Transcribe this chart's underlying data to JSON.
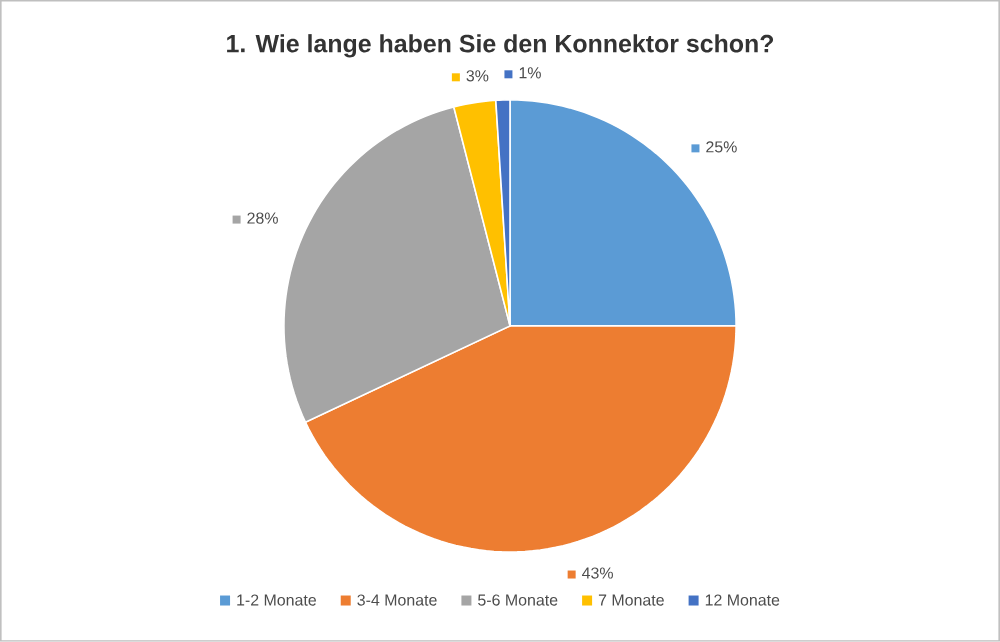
{
  "chart_data": {
    "type": "pie",
    "title": "1. Wie lange haben Sie den Konnektor schon?",
    "categories": [
      "1-2 Monate",
      "3-4 Monate",
      "5-6 Monate",
      "7 Monate",
      "12 Monate"
    ],
    "values": [
      25,
      43,
      28,
      3,
      1
    ],
    "value_labels": [
      "25%",
      "43%",
      "28%",
      "3%",
      "1%"
    ],
    "colors": [
      "#5b9bd5",
      "#ed7d31",
      "#a5a5a5",
      "#ffc000",
      "#4472c4"
    ],
    "legend": "bottom"
  }
}
